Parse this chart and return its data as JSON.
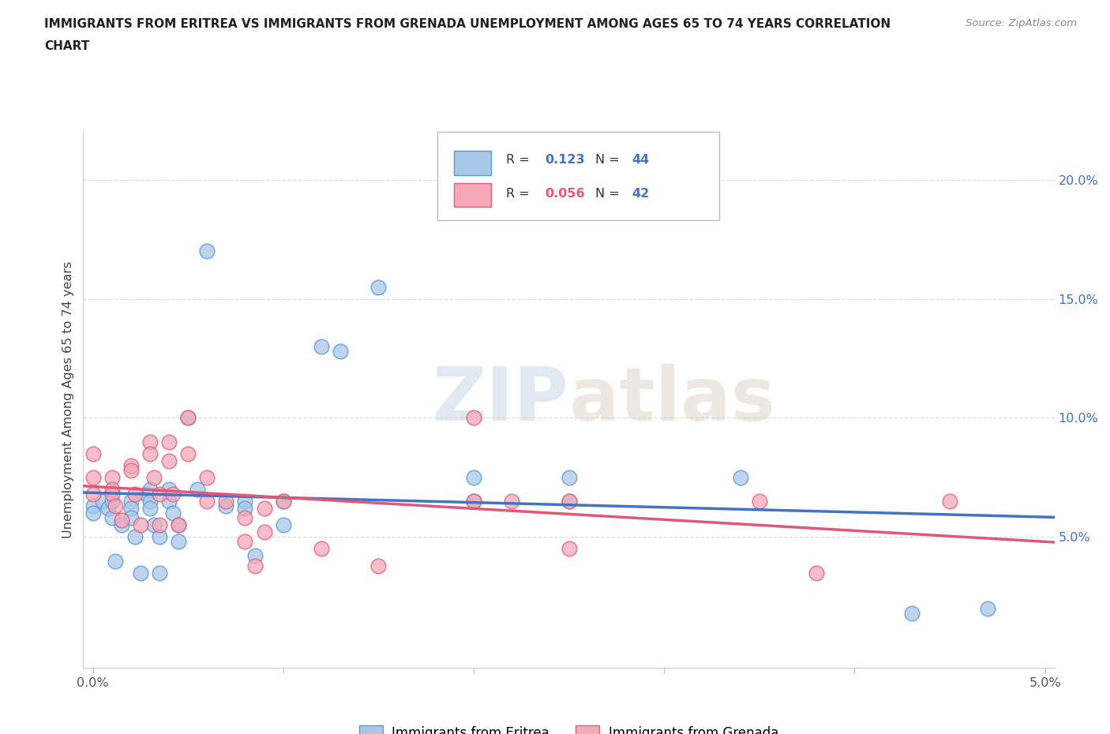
{
  "title_line1": "IMMIGRANTS FROM ERITREA VS IMMIGRANTS FROM GRENADA UNEMPLOYMENT AMONG AGES 65 TO 74 YEARS CORRELATION",
  "title_line2": "CHART",
  "source": "Source: ZipAtlas.com",
  "ylabel": "Unemployment Among Ages 65 to 74 years",
  "xlim": [
    -0.05,
    5.05
  ],
  "ylim": [
    -0.5,
    22.0
  ],
  "xtick_positions": [
    0.0,
    1.0,
    2.0,
    3.0,
    4.0,
    5.0
  ],
  "xticklabels": [
    "0.0%",
    "",
    "",
    "",
    "",
    "5.0%"
  ],
  "ytick_positions": [
    5.0,
    10.0,
    15.0,
    20.0
  ],
  "yticklabels": [
    "5.0%",
    "10.0%",
    "15.0%",
    "20.0%"
  ],
  "eritrea_color": "#a8c8e8",
  "eritrea_edge_color": "#5b9bd5",
  "grenada_color": "#f4a8b8",
  "grenada_edge_color": "#e06080",
  "trendline_eritrea_color": "#4472c4",
  "trendline_grenada_color": "#e05878",
  "R_eritrea": 0.123,
  "N_eritrea": 44,
  "R_grenada": 0.056,
  "N_grenada": 42,
  "eritrea_x": [
    0.0,
    0.0,
    0.05,
    0.08,
    0.1,
    0.1,
    0.12,
    0.15,
    0.2,
    0.2,
    0.2,
    0.22,
    0.25,
    0.28,
    0.3,
    0.3,
    0.3,
    0.32,
    0.35,
    0.35,
    0.4,
    0.4,
    0.42,
    0.45,
    0.45,
    0.5,
    0.55,
    0.6,
    0.7,
    0.8,
    0.8,
    0.85,
    1.0,
    1.0,
    1.2,
    1.3,
    1.5,
    2.0,
    2.0,
    2.5,
    2.5,
    3.4,
    4.3,
    4.7
  ],
  "eritrea_y": [
    6.3,
    6.0,
    6.5,
    6.2,
    6.5,
    5.8,
    4.0,
    5.5,
    6.5,
    6.2,
    5.8,
    5.0,
    3.5,
    6.8,
    7.0,
    6.5,
    6.2,
    5.5,
    5.0,
    3.5,
    7.0,
    6.5,
    6.0,
    5.5,
    4.8,
    10.0,
    7.0,
    17.0,
    6.3,
    6.5,
    6.2,
    4.2,
    6.5,
    5.5,
    13.0,
    12.8,
    15.5,
    7.5,
    6.5,
    7.5,
    6.5,
    7.5,
    1.8,
    2.0
  ],
  "grenada_x": [
    0.0,
    0.0,
    0.0,
    0.1,
    0.1,
    0.1,
    0.12,
    0.15,
    0.2,
    0.2,
    0.22,
    0.25,
    0.3,
    0.3,
    0.32,
    0.35,
    0.35,
    0.4,
    0.4,
    0.42,
    0.45,
    0.5,
    0.5,
    0.6,
    0.6,
    0.7,
    0.8,
    0.8,
    0.85,
    0.9,
    0.9,
    1.0,
    1.2,
    1.5,
    2.0,
    2.0,
    2.2,
    2.5,
    2.5,
    3.5,
    3.8,
    4.5
  ],
  "grenada_y": [
    8.5,
    7.5,
    6.8,
    7.5,
    7.0,
    6.8,
    6.3,
    5.7,
    8.0,
    7.8,
    6.8,
    5.5,
    9.0,
    8.5,
    7.5,
    6.8,
    5.5,
    9.0,
    8.2,
    6.8,
    5.5,
    10.0,
    8.5,
    7.5,
    6.5,
    6.5,
    5.8,
    4.8,
    3.8,
    6.2,
    5.2,
    6.5,
    4.5,
    3.8,
    10.0,
    6.5,
    6.5,
    6.5,
    4.5,
    6.5,
    3.5,
    6.5
  ],
  "watermark_zip": "ZIP",
  "watermark_atlas": "atlas",
  "background_color": "#ffffff",
  "grid_color": "#dddddd"
}
